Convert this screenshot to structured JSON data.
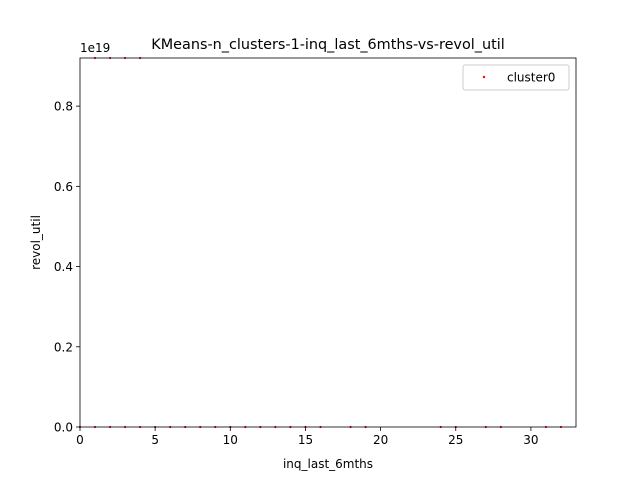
{
  "chart_data": {
    "type": "scatter",
    "title": "KMeans-n_clusters-1-inq_last_6mths-vs-revol_util",
    "xlabel": "inq_last_6mths",
    "ylabel": "revol_util",
    "y_offset_label": "1e19",
    "xlim": [
      0,
      33
    ],
    "ylim": [
      0,
      0.92
    ],
    "x_ticks": [
      0,
      5,
      10,
      15,
      20,
      25,
      30
    ],
    "y_ticks": [
      0.0,
      0.2,
      0.4,
      0.6,
      0.8
    ],
    "x_tick_labels": [
      "0",
      "5",
      "10",
      "15",
      "20",
      "25",
      "30"
    ],
    "y_tick_labels": [
      "0.0",
      "0.2",
      "0.4",
      "0.6",
      "0.8"
    ],
    "grid": false,
    "legend_position": "top-right",
    "series": [
      {
        "name": "cluster0",
        "color": "#ff0000",
        "points": [
          {
            "x": 0,
            "y": 0
          },
          {
            "x": 1,
            "y": 0
          },
          {
            "x": 2,
            "y": 0
          },
          {
            "x": 3,
            "y": 0
          },
          {
            "x": 4,
            "y": 0
          },
          {
            "x": 5,
            "y": 0
          },
          {
            "x": 6,
            "y": 0
          },
          {
            "x": 7,
            "y": 0
          },
          {
            "x": 8,
            "y": 0
          },
          {
            "x": 9,
            "y": 0
          },
          {
            "x": 10,
            "y": 0
          },
          {
            "x": 11,
            "y": 0
          },
          {
            "x": 12,
            "y": 0
          },
          {
            "x": 13,
            "y": 0
          },
          {
            "x": 14,
            "y": 0
          },
          {
            "x": 15,
            "y": 0
          },
          {
            "x": 16,
            "y": 0
          },
          {
            "x": 18,
            "y": 0
          },
          {
            "x": 19,
            "y": 0
          },
          {
            "x": 24,
            "y": 0
          },
          {
            "x": 25,
            "y": 0
          },
          {
            "x": 27,
            "y": 0
          },
          {
            "x": 28,
            "y": 0
          },
          {
            "x": 31,
            "y": 0
          },
          {
            "x": 32,
            "y": 0
          },
          {
            "x": 1,
            "y": 0.92
          },
          {
            "x": 2,
            "y": 0.92
          },
          {
            "x": 3,
            "y": 0.92
          },
          {
            "x": 4,
            "y": 0.92
          }
        ]
      }
    ]
  }
}
